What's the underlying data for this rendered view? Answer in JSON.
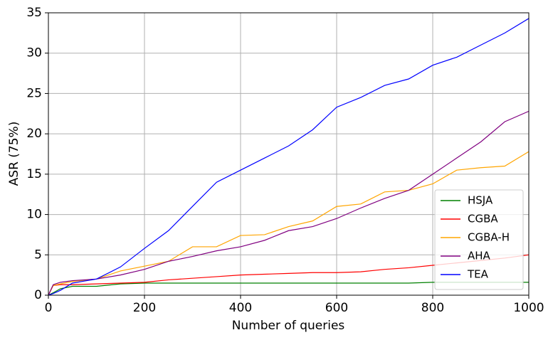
{
  "chart_data": {
    "type": "line",
    "x_label": "Number of queries",
    "y_label": "ASR (75%)",
    "x": [
      0,
      10,
      25,
      50,
      100,
      150,
      200,
      250,
      300,
      350,
      400,
      450,
      500,
      550,
      600,
      650,
      700,
      750,
      800,
      850,
      900,
      950,
      1000
    ],
    "series": [
      {
        "name": "HSJA",
        "color": "green",
        "values": [
          0,
          0.3,
          0.8,
          1.1,
          1.1,
          1.4,
          1.5,
          1.5,
          1.5,
          1.5,
          1.5,
          1.5,
          1.5,
          1.5,
          1.5,
          1.5,
          1.5,
          1.5,
          1.6,
          1.6,
          1.6,
          1.6,
          1.6
        ]
      },
      {
        "name": "CGBA",
        "color": "red",
        "values": [
          0,
          1.2,
          1.3,
          1.3,
          1.4,
          1.5,
          1.6,
          1.9,
          2.1,
          2.3,
          2.5,
          2.6,
          2.7,
          2.8,
          2.8,
          2.9,
          3.2,
          3.4,
          3.7,
          4.0,
          4.3,
          4.6,
          5.0
        ]
      },
      {
        "name": "CGBA-H",
        "color": "orange",
        "values": [
          0,
          1.2,
          1.4,
          1.7,
          2.0,
          3.0,
          3.6,
          4.2,
          6.0,
          6.0,
          7.4,
          7.5,
          8.5,
          9.2,
          11.0,
          11.3,
          12.8,
          13.0,
          13.8,
          15.5,
          15.8,
          16.0,
          17.8
        ]
      },
      {
        "name": "AHA",
        "color": "purple",
        "values": [
          0,
          1.3,
          1.6,
          1.8,
          2.0,
          2.5,
          3.2,
          4.2,
          4.8,
          5.5,
          6.0,
          6.8,
          8.0,
          8.5,
          9.5,
          10.8,
          12.0,
          13.0,
          15.0,
          17.0,
          19.0,
          21.5,
          22.8
        ]
      },
      {
        "name": "TEA",
        "color": "blue",
        "values": [
          0,
          0.2,
          0.6,
          1.5,
          2.0,
          3.5,
          5.8,
          8.0,
          11.0,
          14.0,
          15.5,
          17.0,
          18.5,
          20.5,
          23.3,
          24.5,
          26.0,
          26.8,
          28.5,
          29.5,
          31.0,
          32.5,
          34.3
        ]
      }
    ],
    "xlim": [
      0,
      1000
    ],
    "xticks": [
      0,
      200,
      400,
      600,
      800,
      1000
    ],
    "ylim": [
      0,
      35
    ],
    "yticks": [
      0,
      5,
      10,
      15,
      20,
      25,
      30,
      35
    ],
    "grid": true,
    "legend": "lower right"
  }
}
